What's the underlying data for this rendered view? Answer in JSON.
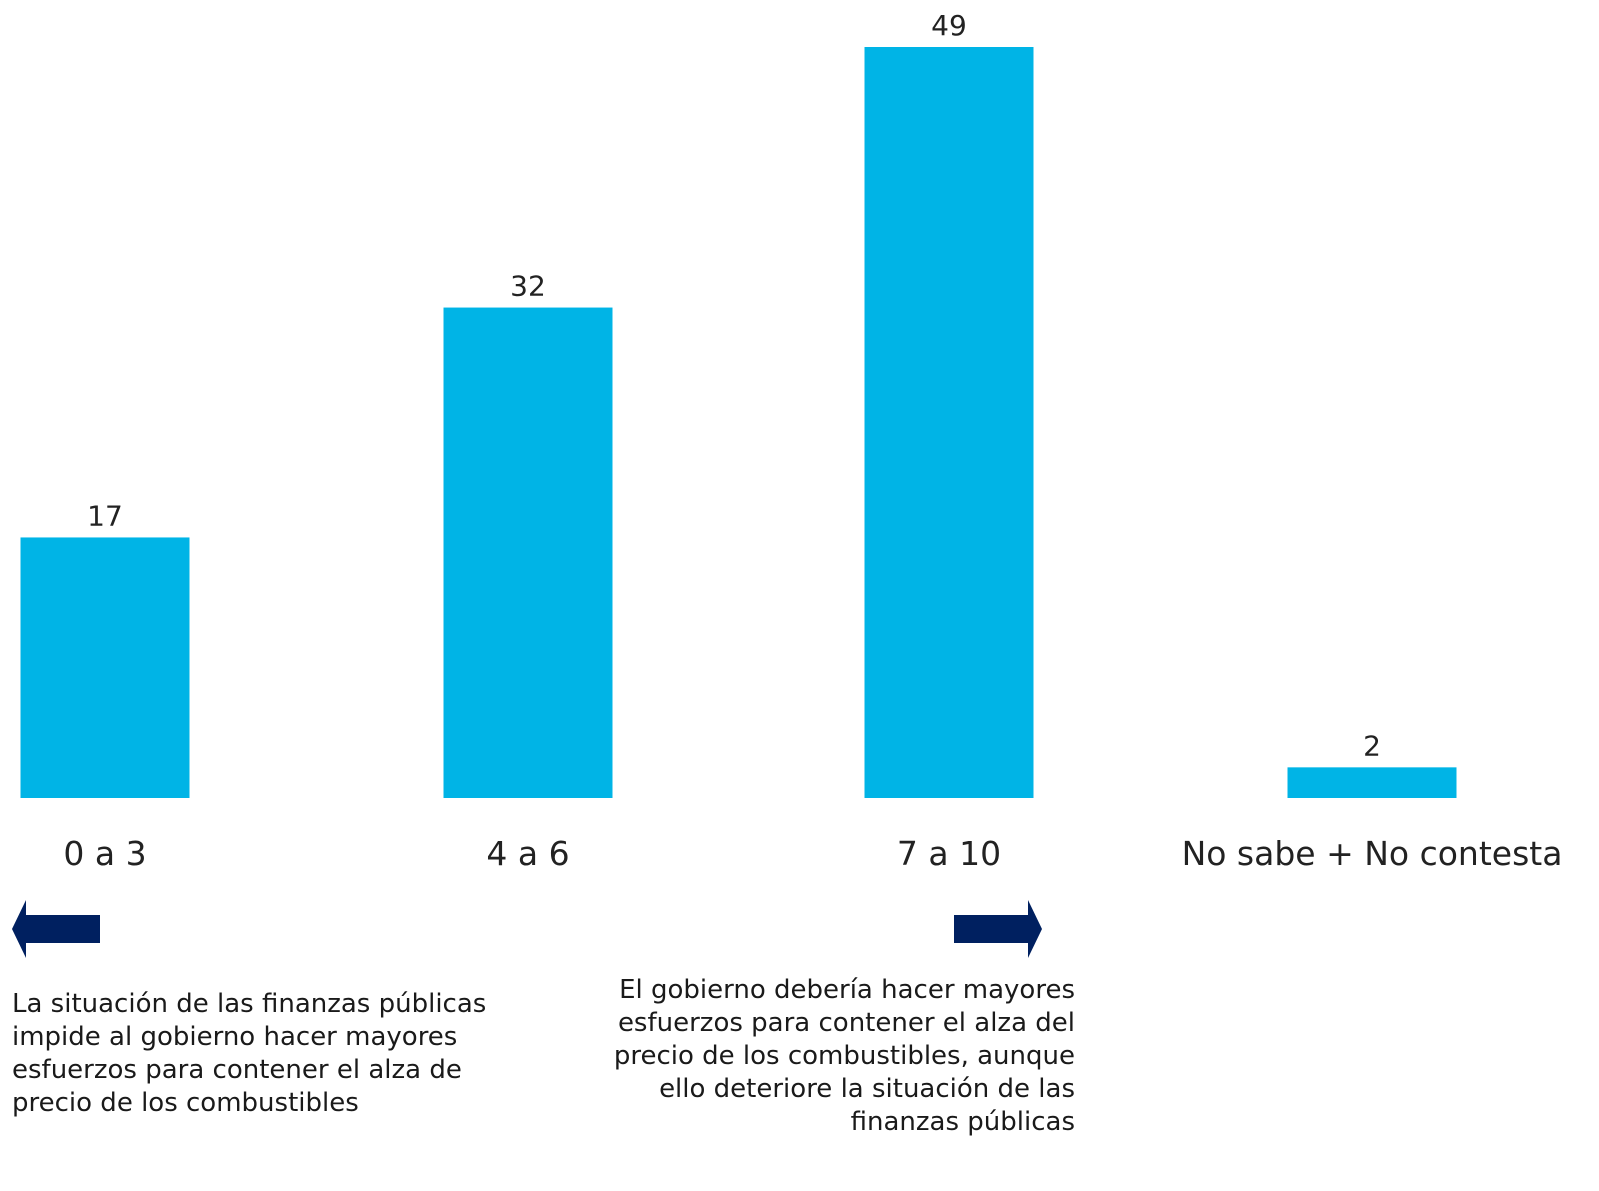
{
  "chart_data": {
    "type": "bar",
    "categories": [
      "0 a 3",
      "4 a 6",
      "7 a 10",
      "No sabe + No contesta"
    ],
    "values": [
      17,
      32,
      49,
      2
    ],
    "value_labels": [
      "17",
      "32",
      "49",
      "2"
    ],
    "title": "",
    "xlabel": "",
    "ylabel": "",
    "ylim": [
      0,
      49
    ],
    "grid": false,
    "bar_color": "#00B4E6"
  },
  "annotations": {
    "left_arrow_icon": "left-arrow-icon",
    "right_arrow_icon": "right-arrow-icon",
    "arrow_color": "#002060",
    "left_text": "La situación de las finanzas públicas impide al gobierno hacer mayores esfuerzos para contener el alza de precio de los combustibles",
    "right_text": "El gobierno debería hacer mayores esfuerzos para contener el alza del precio de los combustibles, aunque ello deteriore la situación de las finanzas públicas"
  }
}
